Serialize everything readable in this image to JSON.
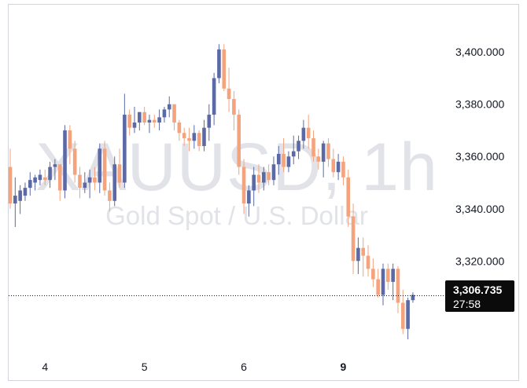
{
  "chart_data": {
    "type": "candlestick",
    "watermark": {
      "symbol": "XAUUSD, 1h",
      "description": "Gold Spot / U.S. Dollar"
    },
    "y_axis": {
      "ticks": [
        "3,400.000",
        "3,380.000",
        "3,360.000",
        "3,340.000",
        "3,320.000"
      ],
      "tick_values": [
        3400,
        3380,
        3360,
        3340,
        3320
      ],
      "ylim": [
        3283.4,
        3418.4
      ]
    },
    "x_axis": {
      "ticks": [
        "4",
        "5",
        "6",
        "9"
      ]
    },
    "last_price": {
      "value": "3,306.735",
      "countdown": "27:58",
      "price": 3306.7
    },
    "colors": {
      "up": "#5b6aa6",
      "down": "#f4a37d",
      "price_line": "#131722",
      "label_bg": "#0b0b0b",
      "watermark": "#e1e3e8"
    },
    "candles": [
      [
        3356,
        3363,
        3340,
        3342
      ],
      [
        3342,
        3352,
        3333,
        3345
      ],
      [
        3343,
        3349,
        3338,
        3347
      ],
      [
        3345,
        3350,
        3343,
        3348
      ],
      [
        3348,
        3354,
        3345,
        3351
      ],
      [
        3350,
        3353,
        3347,
        3352
      ],
      [
        3351,
        3355,
        3349,
        3353
      ],
      [
        3352,
        3355,
        3349,
        3351
      ],
      [
        3351,
        3358,
        3348,
        3356
      ],
      [
        3356,
        3359,
        3351,
        3357
      ],
      [
        3357,
        3357,
        3343,
        3347
      ],
      [
        3347,
        3372,
        3344,
        3370
      ],
      [
        3370,
        3372,
        3357,
        3363
      ],
      [
        3363,
        3366,
        3350,
        3353
      ],
      [
        3353,
        3356,
        3344,
        3348
      ],
      [
        3348,
        3354,
        3346,
        3350
      ],
      [
        3350,
        3355,
        3344,
        3352
      ],
      [
        3352,
        3356,
        3347,
        3350
      ],
      [
        3350,
        3365,
        3346,
        3363
      ],
      [
        3363,
        3366,
        3345,
        3347
      ],
      [
        3347,
        3350,
        3339,
        3343
      ],
      [
        3343,
        3360,
        3341,
        3357
      ],
      [
        3357,
        3363,
        3348,
        3350
      ],
      [
        3350,
        3384,
        3348,
        3376
      ],
      [
        3376,
        3378,
        3368,
        3371
      ],
      [
        3371,
        3379,
        3369,
        3373
      ],
      [
        3373,
        3377,
        3370,
        3377
      ],
      [
        3377,
        3379,
        3372,
        3373
      ],
      [
        3373,
        3376,
        3369,
        3374
      ],
      [
        3374,
        3376,
        3371,
        3373
      ],
      [
        3373,
        3378,
        3370,
        3375
      ],
      [
        3375,
        3379,
        3373,
        3378
      ],
      [
        3378,
        3383,
        3375,
        3380
      ],
      [
        3380,
        3380,
        3370,
        3373
      ],
      [
        3373,
        3374,
        3366,
        3369
      ],
      [
        3369,
        3371,
        3364,
        3367
      ],
      [
        3367,
        3371,
        3362,
        3366
      ],
      [
        3366,
        3372,
        3363,
        3369
      ],
      [
        3369,
        3370,
        3362,
        3364
      ],
      [
        3364,
        3374,
        3362,
        3371
      ],
      [
        3371,
        3380,
        3366,
        3376
      ],
      [
        3376,
        3392,
        3372,
        3390
      ],
      [
        3390,
        3403,
        3388,
        3401
      ],
      [
        3401,
        3403,
        3385,
        3386
      ],
      [
        3386,
        3394,
        3377,
        3382
      ],
      [
        3382,
        3385,
        3370,
        3376
      ],
      [
        3376,
        3378,
        3353,
        3356
      ],
      [
        3356,
        3359,
        3338,
        3342
      ],
      [
        3342,
        3349,
        3337,
        3347
      ],
      [
        3347,
        3356,
        3341,
        3353
      ],
      [
        3353,
        3357,
        3346,
        3350
      ],
      [
        3350,
        3356,
        3347,
        3354
      ],
      [
        3354,
        3357,
        3349,
        3351
      ],
      [
        3351,
        3360,
        3349,
        3357
      ],
      [
        3357,
        3364,
        3353,
        3361
      ],
      [
        3361,
        3367,
        3354,
        3356
      ],
      [
        3356,
        3362,
        3354,
        3360
      ],
      [
        3360,
        3368,
        3357,
        3362
      ],
      [
        3362,
        3368,
        3359,
        3366
      ],
      [
        3366,
        3374,
        3363,
        3371
      ],
      [
        3371,
        3376,
        3363,
        3367
      ],
      [
        3367,
        3370,
        3358,
        3360
      ],
      [
        3360,
        3363,
        3355,
        3358
      ],
      [
        3358,
        3366,
        3352,
        3365
      ],
      [
        3365,
        3367,
        3356,
        3359
      ],
      [
        3359,
        3363,
        3352,
        3354
      ],
      [
        3354,
        3361,
        3351,
        3358
      ],
      [
        3358,
        3360,
        3349,
        3352
      ],
      [
        3352,
        3355,
        3333,
        3337
      ],
      [
        3337,
        3342,
        3315,
        3320
      ],
      [
        3320,
        3329,
        3315,
        3325
      ],
      [
        3325,
        3329,
        3314,
        3322
      ],
      [
        3322,
        3326,
        3314,
        3317
      ],
      [
        3317,
        3321,
        3310,
        3313
      ],
      [
        3313,
        3317,
        3306,
        3307
      ],
      [
        3307,
        3319,
        3303,
        3317
      ],
      [
        3317,
        3319,
        3309,
        3312
      ],
      [
        3312,
        3319,
        3305,
        3317
      ],
      [
        3317,
        3318,
        3300,
        3304
      ],
      [
        3304,
        3309,
        3292,
        3294
      ],
      [
        3294,
        3306,
        3290,
        3305
      ],
      [
        3305,
        3308,
        3304,
        3307
      ]
    ],
    "x_tick_candles": [
      7,
      27,
      47,
      67
    ]
  }
}
